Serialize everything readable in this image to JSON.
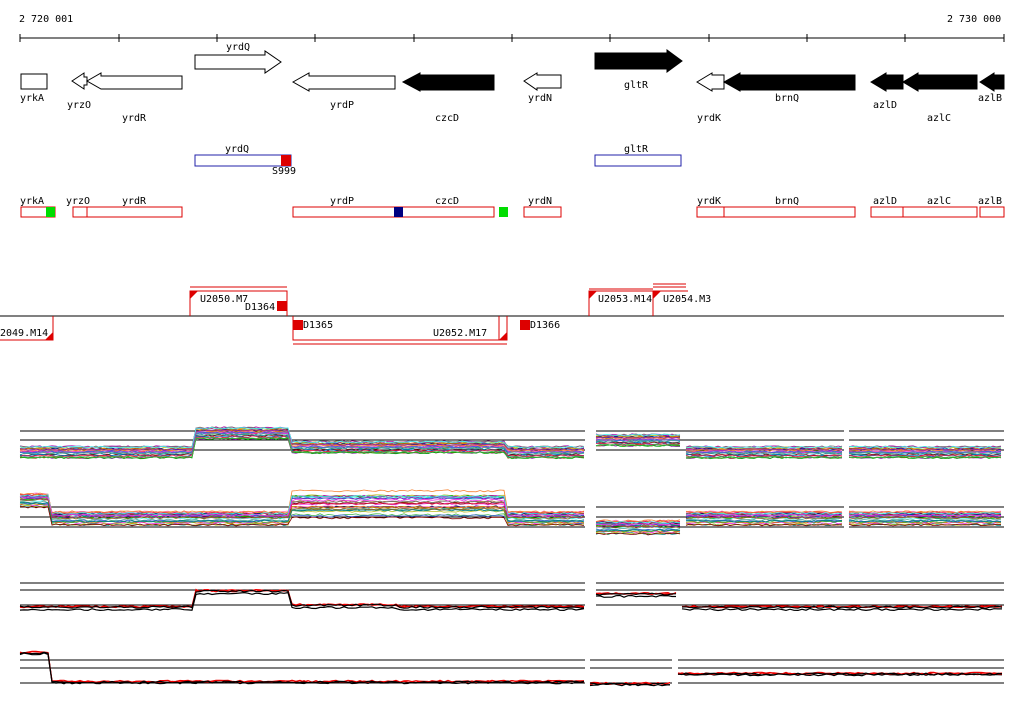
{
  "ruler": {
    "start_label": "2 720 001",
    "end_label": "2 730 000"
  },
  "colors": {
    "gene_outline": "#000000",
    "gene_fill_dark": "#000000",
    "feature_blue": "#2222aa",
    "feature_red": "#dd0000",
    "marker_green": "#00dd00",
    "marker_navy": "#000080",
    "profile_red": "#ee0000",
    "profile_black": "#000000"
  },
  "genes": {
    "yrkA": "yrkA",
    "yrzO": "yrzO",
    "yrdR": "yrdR",
    "yrdQ": "yrdQ",
    "yrdP": "yrdP",
    "czcD": "czcD",
    "yrdN": "yrdN",
    "gltR": "gltR",
    "yrdK": "yrdK",
    "brnQ": "brnQ",
    "azlD": "azlD",
    "azlC": "azlC",
    "azlB": "azlB"
  },
  "operon_boxes": {
    "yrdQ": "yrdQ",
    "site_S999": "S999",
    "gltR": "gltR"
  },
  "transcripts": {
    "yrkA": "yrkA",
    "yrzO": "yrzO",
    "yrdR": "yrdR",
    "yrdP": "yrdP",
    "czcD": "czcD",
    "yrdN": "yrdN",
    "yrdK": "yrdK",
    "brnQ": "brnQ",
    "azlD": "azlD",
    "azlC": "azlC",
    "azlB": "azlB"
  },
  "segments": {
    "U2050_M7": "U2050.M7",
    "D1364": "D1364",
    "U2053_M14": "U2053.M14",
    "U2054_M3": "U2054.M3",
    "U2049_M14": "2049.M14",
    "D1365": "D1365",
    "U205x_overlap": "U2052.M17",
    "D1366": "D1366"
  }
}
